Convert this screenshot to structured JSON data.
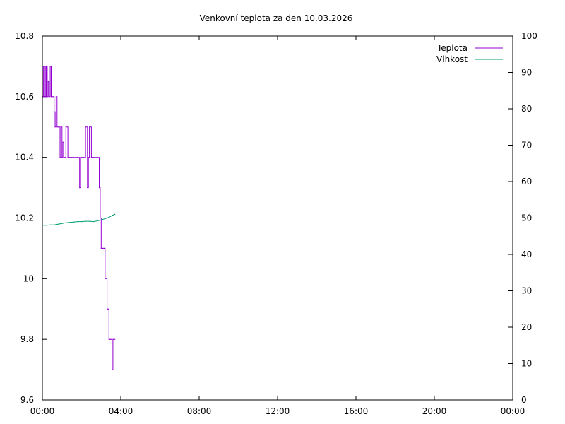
{
  "chart_data": {
    "type": "line",
    "title": "Venkovní teplota za den 10.03.2026",
    "xlabel": "",
    "ylabel": "",
    "y2label": "",
    "x_ticks": [
      "00:00",
      "04:00",
      "08:00",
      "12:00",
      "16:00",
      "20:00",
      "00:00"
    ],
    "x_range_hours": [
      0,
      24
    ],
    "y_left_ticks": [
      "9.6",
      "9.8",
      "10",
      "10.2",
      "10.4",
      "10.6",
      "10.8"
    ],
    "y_left_range": [
      9.6,
      10.8
    ],
    "y_right_ticks": [
      "0",
      "10",
      "20",
      "30",
      "40",
      "50",
      "60",
      "70",
      "80",
      "90",
      "100"
    ],
    "y_right_range": [
      0,
      100
    ],
    "grid": false,
    "legend_position": "top-right",
    "series": [
      {
        "name": "Teplota",
        "axis": "left",
        "color": "#9400d3",
        "x_hours": [
          0.0,
          0.05,
          0.1,
          0.15,
          0.2,
          0.25,
          0.3,
          0.35,
          0.4,
          0.45,
          0.5,
          0.55,
          0.6,
          0.65,
          0.7,
          0.75,
          0.8,
          0.85,
          0.9,
          0.95,
          1.0,
          1.05,
          1.1,
          1.15,
          1.2,
          1.3,
          1.4,
          1.5,
          1.6,
          1.7,
          1.8,
          1.9,
          1.95,
          2.0,
          2.1,
          2.2,
          2.3,
          2.35,
          2.4,
          2.5,
          2.55,
          2.6,
          2.7,
          2.8,
          2.9,
          2.95,
          3.0,
          3.05,
          3.1,
          3.15,
          3.2,
          3.25,
          3.3,
          3.35,
          3.4,
          3.45,
          3.5,
          3.55,
          3.6,
          3.65,
          3.7
        ],
        "y": [
          10.7,
          10.6,
          10.7,
          10.6,
          10.7,
          10.6,
          10.65,
          10.6,
          10.7,
          10.6,
          10.6,
          10.6,
          10.55,
          10.5,
          10.6,
          10.5,
          10.5,
          10.5,
          10.4,
          10.5,
          10.4,
          10.45,
          10.4,
          10.4,
          10.5,
          10.4,
          10.4,
          10.4,
          10.4,
          10.4,
          10.4,
          10.3,
          10.4,
          10.4,
          10.4,
          10.5,
          10.3,
          10.4,
          10.5,
          10.4,
          10.4,
          10.4,
          10.4,
          10.4,
          10.3,
          10.2,
          10.1,
          10.1,
          10.1,
          10.1,
          10.0,
          10.0,
          9.9,
          9.9,
          9.8,
          9.8,
          9.8,
          9.7,
          9.8,
          9.8,
          9.8
        ]
      },
      {
        "name": "Vlhkost",
        "axis": "right",
        "color": "#009e73",
        "x_hours": [
          0.0,
          0.2,
          0.4,
          0.6,
          0.8,
          1.0,
          1.2,
          1.4,
          1.6,
          1.8,
          2.0,
          2.2,
          2.4,
          2.6,
          2.8,
          3.0,
          3.2,
          3.4,
          3.6,
          3.7
        ],
        "y": [
          48.0,
          48.0,
          48.1,
          48.1,
          48.3,
          48.5,
          48.7,
          48.8,
          48.9,
          49.0,
          49.0,
          49.1,
          49.1,
          49.0,
          49.2,
          49.5,
          49.8,
          50.2,
          50.8,
          51.0
        ]
      }
    ]
  }
}
